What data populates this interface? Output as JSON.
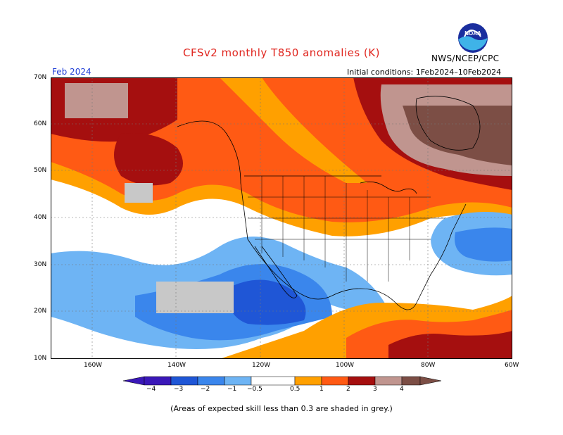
{
  "header": {
    "title": "CFSv2 monthly T850 anomalies (K)",
    "organization": "NWS/NCEP/CPC",
    "month": "Feb 2024",
    "initial_conditions": "Initial conditions: 1Feb2024–10Feb2024"
  },
  "logo": {
    "text": "NOAA",
    "icon": "noaa-logo-icon"
  },
  "axes": {
    "latitude_labels": [
      "70N",
      "60N",
      "50N",
      "40N",
      "30N",
      "20N",
      "10N"
    ],
    "longitude_labels": [
      "160W",
      "140W",
      "120W",
      "100W",
      "80W",
      "60W"
    ]
  },
  "colorbar": {
    "tick_labels": [
      "−4",
      "−3",
      "−2",
      "−1",
      "−0.5",
      "0.5",
      "1",
      "2",
      "3",
      "4"
    ],
    "colors": [
      "#3a18b8",
      "#1f56d6",
      "#3a86ec",
      "#6eb4f4",
      "#ffffff",
      "#ffa000",
      "#ff5a14",
      "#e0301e",
      "#a50f0f",
      "#c0958f",
      "#7c4e45"
    ]
  },
  "legend_note": "(Areas of expected skill less than 0.3 are shaded in grey.)"
}
